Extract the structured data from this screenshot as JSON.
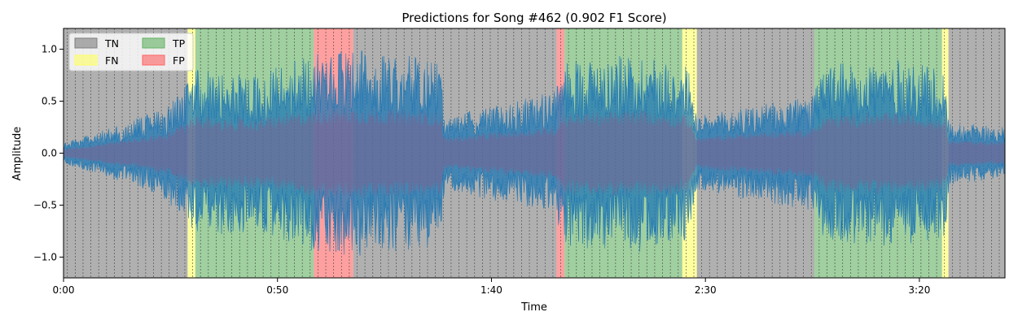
{
  "chart_data": {
    "type": "area",
    "title": "Predictions for Song #462 (0.902 F1 Score)",
    "xlabel": "Time",
    "ylabel": "Amplitude",
    "xlim_seconds": [
      0,
      220
    ],
    "ylim": [
      -1.2,
      1.2
    ],
    "x_ticks": [
      {
        "seconds": 0,
        "label": "0:00"
      },
      {
        "seconds": 50,
        "label": "0:50"
      },
      {
        "seconds": 100,
        "label": "1:40"
      },
      {
        "seconds": 150,
        "label": "2:30"
      },
      {
        "seconds": 200,
        "label": "3:20"
      }
    ],
    "y_ticks": [
      {
        "value": 1.0,
        "label": "1.0"
      },
      {
        "value": 0.5,
        "label": "0.5"
      },
      {
        "value": 0.0,
        "label": "0.0"
      },
      {
        "value": -0.5,
        "label": "−0.5"
      },
      {
        "value": -1.0,
        "label": "−1.0"
      }
    ],
    "grid": false,
    "legend": {
      "placement": "top-left",
      "columns": 2,
      "entries": [
        {
          "key": "TN",
          "label": "TN"
        },
        {
          "key": "FN",
          "label": "FN"
        },
        {
          "key": "TP",
          "label": "TP"
        },
        {
          "key": "FP",
          "label": "FP"
        }
      ]
    },
    "class_colors": {
      "TN": "#7f7f7f",
      "FN": "#ffff66",
      "TP": "#66b266",
      "FP": "#ff6666"
    },
    "segments": [
      {
        "start": 0.0,
        "end": 29.0,
        "class": "TN"
      },
      {
        "start": 29.0,
        "end": 30.8,
        "class": "FN"
      },
      {
        "start": 30.8,
        "end": 58.5,
        "class": "TP"
      },
      {
        "start": 58.5,
        "end": 67.7,
        "class": "FP"
      },
      {
        "start": 67.7,
        "end": 115.2,
        "class": "TN"
      },
      {
        "start": 115.2,
        "end": 117.1,
        "class": "FP"
      },
      {
        "start": 117.1,
        "end": 144.6,
        "class": "TP"
      },
      {
        "start": 144.6,
        "end": 148.0,
        "class": "FN"
      },
      {
        "start": 148.0,
        "end": 175.5,
        "class": "TN"
      },
      {
        "start": 175.5,
        "end": 205.3,
        "class": "TP"
      },
      {
        "start": 205.3,
        "end": 206.8,
        "class": "FN"
      },
      {
        "start": 206.8,
        "end": 220.0,
        "class": "TN"
      }
    ],
    "beat_lines_seconds_every": 1.83,
    "waveform_color": "#1f77b4",
    "waveform_envelope": [
      {
        "t": 0,
        "amp": 0.1
      },
      {
        "t": 8,
        "amp": 0.2
      },
      {
        "t": 16,
        "amp": 0.32
      },
      {
        "t": 24,
        "amp": 0.45
      },
      {
        "t": 29,
        "amp": 0.7
      },
      {
        "t": 30.8,
        "amp": 0.8
      },
      {
        "t": 45,
        "amp": 0.75
      },
      {
        "t": 58,
        "amp": 0.95
      },
      {
        "t": 66,
        "amp": 1.0
      },
      {
        "t": 78,
        "amp": 0.95
      },
      {
        "t": 88,
        "amp": 0.9
      },
      {
        "t": 89,
        "amp": 0.35
      },
      {
        "t": 100,
        "amp": 0.45
      },
      {
        "t": 110,
        "amp": 0.55
      },
      {
        "t": 115,
        "amp": 0.6
      },
      {
        "t": 117.1,
        "amp": 0.9
      },
      {
        "t": 135,
        "amp": 0.95
      },
      {
        "t": 146,
        "amp": 0.85
      },
      {
        "t": 148,
        "amp": 0.35
      },
      {
        "t": 160,
        "amp": 0.45
      },
      {
        "t": 175,
        "amp": 0.55
      },
      {
        "t": 178,
        "amp": 0.85
      },
      {
        "t": 195,
        "amp": 0.9
      },
      {
        "t": 206,
        "amp": 0.8
      },
      {
        "t": 207,
        "amp": 0.3
      },
      {
        "t": 220,
        "amp": 0.25
      }
    ]
  }
}
